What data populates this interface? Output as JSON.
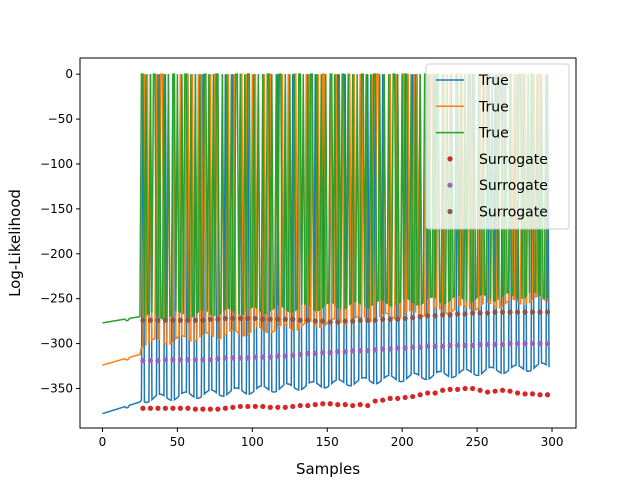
{
  "chart_data": {
    "type": "line",
    "title": "",
    "xlabel": "Samples",
    "ylabel": "Log-Likelihood",
    "xlim": [
      -15,
      316
    ],
    "ylim": [
      -394,
      18
    ],
    "xticks": [
      0,
      50,
      100,
      150,
      200,
      250,
      300
    ],
    "yticks": [
      0,
      -50,
      -100,
      -150,
      -200,
      -250,
      -300,
      -350
    ],
    "ytick_labels": [
      "0",
      "−50",
      "−100",
      "−150",
      "−200",
      "−250",
      "−300",
      "−350"
    ],
    "grid": false,
    "legend_position": "top-right",
    "series": [
      {
        "name": "True",
        "kind": "line",
        "color": "#1f77b4",
        "start": [
          0,
          -378
        ],
        "start_end": [
          25,
          -365
        ],
        "base_from": [
          26,
          -362
        ],
        "base_to": [
          298,
          -325
        ],
        "spike_top": 0,
        "spike_every": 5,
        "spike_from": 27
      },
      {
        "name": "True",
        "kind": "line",
        "color": "#ff7f0e",
        "start": [
          0,
          -324
        ],
        "start_end": [
          25,
          -312
        ],
        "base_from": [
          26,
          -300
        ],
        "base_to": [
          298,
          -250
        ],
        "spike_top": 0,
        "spike_every": 4,
        "spike_from": 28
      },
      {
        "name": "True",
        "kind": "line",
        "color": "#2ca02c",
        "start": [
          0,
          -277
        ],
        "start_end": [
          25,
          -270
        ],
        "base_from": [
          26,
          -270
        ],
        "base_to": [
          298,
          -245
        ],
        "spike_top": 0,
        "spike_every": 3,
        "spike_from": 26
      },
      {
        "name": "Surrogate",
        "kind": "scatter",
        "color": "#d62728",
        "points": [
          [
            27,
            -372
          ],
          [
            32,
            -372
          ],
          [
            37,
            -372
          ],
          [
            42,
            -372
          ],
          [
            47,
            -372
          ],
          [
            52,
            -372
          ],
          [
            57,
            -372
          ],
          [
            62,
            -373
          ],
          [
            67,
            -373
          ],
          [
            72,
            -373
          ],
          [
            77,
            -373
          ],
          [
            82,
            -372
          ],
          [
            87,
            -371
          ],
          [
            92,
            -370
          ],
          [
            97,
            -370
          ],
          [
            102,
            -370
          ],
          [
            107,
            -370
          ],
          [
            112,
            -371
          ],
          [
            117,
            -371
          ],
          [
            122,
            -371
          ],
          [
            127,
            -370
          ],
          [
            132,
            -369
          ],
          [
            137,
            -369
          ],
          [
            142,
            -368
          ],
          [
            147,
            -367
          ],
          [
            152,
            -367
          ],
          [
            157,
            -368
          ],
          [
            162,
            -368
          ],
          [
            167,
            -369
          ],
          [
            172,
            -368
          ],
          [
            177,
            -369
          ],
          [
            182,
            -364
          ],
          [
            187,
            -363
          ],
          [
            192,
            -361
          ],
          [
            197,
            -361
          ],
          [
            202,
            -360
          ],
          [
            207,
            -359
          ],
          [
            212,
            -357
          ],
          [
            217,
            -355
          ],
          [
            222,
            -355
          ],
          [
            227,
            -352
          ],
          [
            232,
            -351
          ],
          [
            237,
            -351
          ],
          [
            242,
            -350
          ],
          [
            247,
            -350
          ],
          [
            252,
            -352
          ],
          [
            257,
            -354
          ],
          [
            262,
            -353
          ],
          [
            267,
            -352
          ],
          [
            272,
            -353
          ],
          [
            277,
            -355
          ],
          [
            282,
            -356
          ],
          [
            287,
            -356
          ],
          [
            292,
            -357
          ],
          [
            297,
            -357
          ]
        ]
      },
      {
        "name": "Surrogate",
        "kind": "scatter",
        "color": "#9467bd",
        "points": [
          [
            27,
            -319
          ],
          [
            32,
            -319
          ],
          [
            37,
            -319
          ],
          [
            42,
            -318
          ],
          [
            47,
            -318
          ],
          [
            52,
            -318
          ],
          [
            57,
            -318
          ],
          [
            62,
            -318
          ],
          [
            67,
            -318
          ],
          [
            72,
            -318
          ],
          [
            77,
            -317
          ],
          [
            82,
            -316
          ],
          [
            87,
            -316
          ],
          [
            92,
            -316
          ],
          [
            97,
            -316
          ],
          [
            102,
            -315
          ],
          [
            107,
            -315
          ],
          [
            112,
            -315
          ],
          [
            117,
            -314
          ],
          [
            122,
            -314
          ],
          [
            127,
            -313
          ],
          [
            132,
            -312
          ],
          [
            137,
            -311
          ],
          [
            142,
            -311
          ],
          [
            147,
            -310
          ],
          [
            152,
            -310
          ],
          [
            157,
            -309
          ],
          [
            162,
            -309
          ],
          [
            167,
            -308
          ],
          [
            172,
            -308
          ],
          [
            177,
            -308
          ],
          [
            182,
            -307
          ],
          [
            187,
            -306
          ],
          [
            192,
            -306
          ],
          [
            197,
            -305
          ],
          [
            202,
            -305
          ],
          [
            207,
            -304
          ],
          [
            212,
            -304
          ],
          [
            217,
            -303
          ],
          [
            222,
            -303
          ],
          [
            227,
            -303
          ],
          [
            232,
            -302
          ],
          [
            237,
            -302
          ],
          [
            242,
            -302
          ],
          [
            247,
            -302
          ],
          [
            252,
            -301
          ],
          [
            257,
            -301
          ],
          [
            262,
            -301
          ],
          [
            267,
            -301
          ],
          [
            272,
            -300
          ],
          [
            277,
            -300
          ],
          [
            282,
            -300
          ],
          [
            287,
            -300
          ],
          [
            292,
            -300
          ],
          [
            297,
            -300
          ]
        ]
      },
      {
        "name": "Surrogate",
        "kind": "scatter",
        "color": "#8c564b",
        "points": [
          [
            27,
            -274
          ],
          [
            32,
            -274
          ],
          [
            37,
            -274
          ],
          [
            42,
            -274
          ],
          [
            47,
            -274
          ],
          [
            52,
            -274
          ],
          [
            57,
            -274
          ],
          [
            62,
            -274
          ],
          [
            67,
            -274
          ],
          [
            72,
            -273
          ],
          [
            77,
            -273
          ],
          [
            82,
            -272
          ],
          [
            87,
            -272
          ],
          [
            92,
            -272
          ],
          [
            97,
            -272
          ],
          [
            102,
            -272
          ],
          [
            107,
            -273
          ],
          [
            112,
            -273
          ],
          [
            117,
            -273
          ],
          [
            122,
            -273
          ],
          [
            127,
            -273
          ],
          [
            132,
            -274
          ],
          [
            137,
            -274
          ],
          [
            142,
            -275
          ],
          [
            147,
            -275
          ],
          [
            152,
            -276
          ],
          [
            157,
            -276
          ],
          [
            162,
            -275
          ],
          [
            167,
            -275
          ],
          [
            172,
            -274
          ],
          [
            177,
            -274
          ],
          [
            182,
            -274
          ],
          [
            187,
            -273
          ],
          [
            192,
            -273
          ],
          [
            197,
            -273
          ],
          [
            202,
            -272
          ],
          [
            207,
            -271
          ],
          [
            212,
            -270
          ],
          [
            217,
            -269
          ],
          [
            222,
            -269
          ],
          [
            227,
            -268
          ],
          [
            232,
            -268
          ],
          [
            237,
            -267
          ],
          [
            242,
            -267
          ],
          [
            247,
            -266
          ],
          [
            252,
            -266
          ],
          [
            257,
            -266
          ],
          [
            262,
            -265
          ],
          [
            267,
            -265
          ],
          [
            272,
            -265
          ],
          [
            277,
            -265
          ],
          [
            282,
            -265
          ],
          [
            287,
            -265
          ],
          [
            292,
            -265
          ],
          [
            297,
            -265
          ]
        ]
      }
    ]
  }
}
